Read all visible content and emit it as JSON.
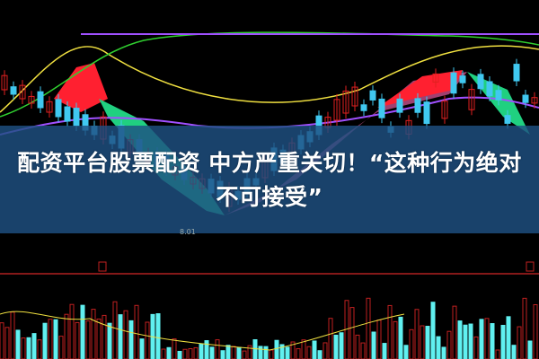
{
  "headline": {
    "line1": "配资平台股票配资 中方严重关切！“这种行为绝对",
    "line2": "不可接受”"
  },
  "chart_labels": {
    "low_price": "8.01"
  },
  "colors": {
    "background": "#000000",
    "banner": "#1e5082",
    "up_candle": "#e02020",
    "down_candle": "#40c8f0",
    "cloud_up": "#ff2030",
    "cloud_down": "#20d080",
    "ma_yellow": "#f0e040",
    "ma_green": "#30d030",
    "ma_purple": "#a050ff",
    "volume_up": "#c02020",
    "volume_down": "#60f0f0"
  }
}
